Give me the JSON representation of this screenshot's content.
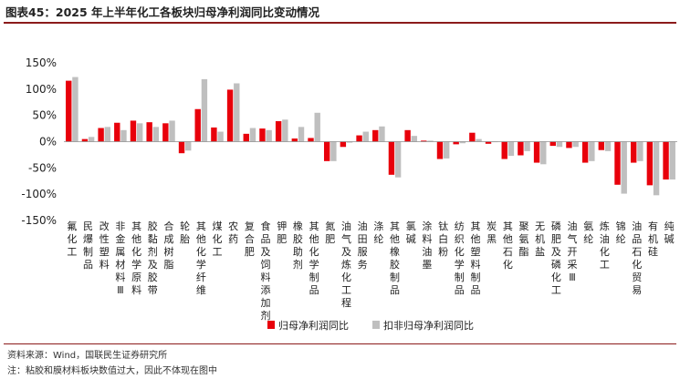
{
  "header": {
    "title": "图表45：2025 年上半年化工各板块归母净利润同比变动情况"
  },
  "footer": {
    "source": "资料来源：Wind，国联民生证券研究所",
    "note": "注：粘胶和膜材料板块数值过大，因此不体现在图中"
  },
  "colors": {
    "series1": "#e8000b",
    "series2": "#bfbfbf",
    "rule": "#8b1a1a"
  },
  "chart_data": {
    "type": "bar",
    "title": "",
    "xlabel": "",
    "ylabel": "",
    "ylim": [
      -150,
      150
    ],
    "y_ticks": [
      150,
      100,
      50,
      0,
      -50,
      -100,
      -150
    ],
    "y_tick_labels": [
      "150%",
      "100%",
      "50%",
      "0%",
      "-50%",
      "-100%",
      "-150%"
    ],
    "legend_position": "bottom",
    "grid": false,
    "categories": [
      "氟化工",
      "民爆制品",
      "改性塑料",
      "非金属材料Ⅲ",
      "其他化学原料",
      "胶黏剂及胶带",
      "合成树脂",
      "轮胎",
      "其他化学纤维",
      "煤化工",
      "农药",
      "复合肥",
      "食品及饲料添加剂",
      "钾肥",
      "橡胶助剂",
      "其他化学制品",
      "氮肥",
      "油气及炼化工程",
      "油田服务",
      "涤纶",
      "其他橡胶制品",
      "氯碱",
      "涂料油墨",
      "钛白粉",
      "纺织化学制品",
      "其他塑料制品",
      "炭黑",
      "其他石化",
      "聚氨酯",
      "无机盐",
      "磷肥及磷化工",
      "油气开采Ⅲ",
      "氨纶",
      "炼油化工",
      "锦纶",
      "油品石化贸易",
      "有机硅",
      "纯碱"
    ],
    "series": [
      {
        "name": "归母净利润同比",
        "values": [
          116,
          5,
          26,
          36,
          40,
          37,
          35,
          -22,
          62,
          27,
          99,
          15,
          25,
          39,
          6,
          7,
          -37,
          -10,
          12,
          22,
          -63,
          22,
          2,
          -33,
          -5,
          17,
          -4,
          -33,
          -26,
          -40,
          -8,
          -12,
          -40,
          -16,
          -82,
          -40,
          -83,
          -72
        ]
      },
      {
        "name": "扣非归母净利润同比",
        "values": [
          123,
          9,
          28,
          22,
          35,
          28,
          40,
          -17,
          119,
          19,
          111,
          26,
          22,
          42,
          28,
          55,
          -37,
          -2,
          19,
          29,
          -68,
          11,
          2,
          -32,
          -3,
          5,
          0,
          -27,
          -18,
          -43,
          -10,
          -10,
          -37,
          -18,
          -99,
          -37,
          -102,
          -72
        ]
      }
    ]
  }
}
